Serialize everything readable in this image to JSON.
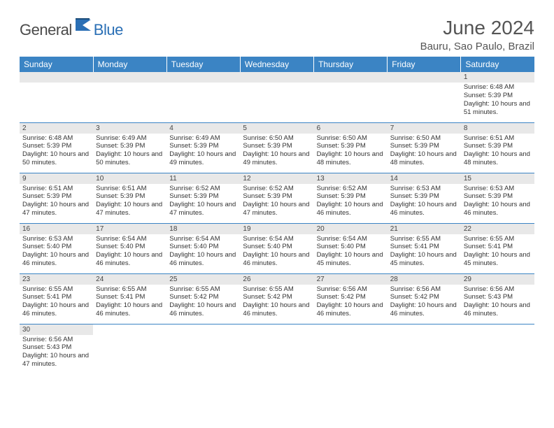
{
  "logo": {
    "textDark": "General",
    "textBlue": "Blue"
  },
  "title": "June 2024",
  "location": "Bauru, Sao Paulo, Brazil",
  "colors": {
    "headerBg": "#3b84c4",
    "headerText": "#ffffff",
    "dayNumBg": "#e8e8e8",
    "borderColor": "#3b84c4",
    "textColor": "#333333",
    "titleColor": "#555555",
    "logoDark": "#4a4a4a",
    "logoBlue": "#2a6fb5"
  },
  "weekdays": [
    "Sunday",
    "Monday",
    "Tuesday",
    "Wednesday",
    "Thursday",
    "Friday",
    "Saturday"
  ],
  "weeks": [
    [
      null,
      null,
      null,
      null,
      null,
      null,
      {
        "n": "1",
        "sr": "6:48 AM",
        "ss": "5:39 PM",
        "dl": "10 hours and 51 minutes."
      }
    ],
    [
      {
        "n": "2",
        "sr": "6:48 AM",
        "ss": "5:39 PM",
        "dl": "10 hours and 50 minutes."
      },
      {
        "n": "3",
        "sr": "6:49 AM",
        "ss": "5:39 PM",
        "dl": "10 hours and 50 minutes."
      },
      {
        "n": "4",
        "sr": "6:49 AM",
        "ss": "5:39 PM",
        "dl": "10 hours and 49 minutes."
      },
      {
        "n": "5",
        "sr": "6:50 AM",
        "ss": "5:39 PM",
        "dl": "10 hours and 49 minutes."
      },
      {
        "n": "6",
        "sr": "6:50 AM",
        "ss": "5:39 PM",
        "dl": "10 hours and 48 minutes."
      },
      {
        "n": "7",
        "sr": "6:50 AM",
        "ss": "5:39 PM",
        "dl": "10 hours and 48 minutes."
      },
      {
        "n": "8",
        "sr": "6:51 AM",
        "ss": "5:39 PM",
        "dl": "10 hours and 48 minutes."
      }
    ],
    [
      {
        "n": "9",
        "sr": "6:51 AM",
        "ss": "5:39 PM",
        "dl": "10 hours and 47 minutes."
      },
      {
        "n": "10",
        "sr": "6:51 AM",
        "ss": "5:39 PM",
        "dl": "10 hours and 47 minutes."
      },
      {
        "n": "11",
        "sr": "6:52 AM",
        "ss": "5:39 PM",
        "dl": "10 hours and 47 minutes."
      },
      {
        "n": "12",
        "sr": "6:52 AM",
        "ss": "5:39 PM",
        "dl": "10 hours and 47 minutes."
      },
      {
        "n": "13",
        "sr": "6:52 AM",
        "ss": "5:39 PM",
        "dl": "10 hours and 46 minutes."
      },
      {
        "n": "14",
        "sr": "6:53 AM",
        "ss": "5:39 PM",
        "dl": "10 hours and 46 minutes."
      },
      {
        "n": "15",
        "sr": "6:53 AM",
        "ss": "5:39 PM",
        "dl": "10 hours and 46 minutes."
      }
    ],
    [
      {
        "n": "16",
        "sr": "6:53 AM",
        "ss": "5:40 PM",
        "dl": "10 hours and 46 minutes."
      },
      {
        "n": "17",
        "sr": "6:54 AM",
        "ss": "5:40 PM",
        "dl": "10 hours and 46 minutes."
      },
      {
        "n": "18",
        "sr": "6:54 AM",
        "ss": "5:40 PM",
        "dl": "10 hours and 46 minutes."
      },
      {
        "n": "19",
        "sr": "6:54 AM",
        "ss": "5:40 PM",
        "dl": "10 hours and 46 minutes."
      },
      {
        "n": "20",
        "sr": "6:54 AM",
        "ss": "5:40 PM",
        "dl": "10 hours and 45 minutes."
      },
      {
        "n": "21",
        "sr": "6:55 AM",
        "ss": "5:41 PM",
        "dl": "10 hours and 45 minutes."
      },
      {
        "n": "22",
        "sr": "6:55 AM",
        "ss": "5:41 PM",
        "dl": "10 hours and 45 minutes."
      }
    ],
    [
      {
        "n": "23",
        "sr": "6:55 AM",
        "ss": "5:41 PM",
        "dl": "10 hours and 46 minutes."
      },
      {
        "n": "24",
        "sr": "6:55 AM",
        "ss": "5:41 PM",
        "dl": "10 hours and 46 minutes."
      },
      {
        "n": "25",
        "sr": "6:55 AM",
        "ss": "5:42 PM",
        "dl": "10 hours and 46 minutes."
      },
      {
        "n": "26",
        "sr": "6:55 AM",
        "ss": "5:42 PM",
        "dl": "10 hours and 46 minutes."
      },
      {
        "n": "27",
        "sr": "6:56 AM",
        "ss": "5:42 PM",
        "dl": "10 hours and 46 minutes."
      },
      {
        "n": "28",
        "sr": "6:56 AM",
        "ss": "5:42 PM",
        "dl": "10 hours and 46 minutes."
      },
      {
        "n": "29",
        "sr": "6:56 AM",
        "ss": "5:43 PM",
        "dl": "10 hours and 46 minutes."
      }
    ],
    [
      {
        "n": "30",
        "sr": "6:56 AM",
        "ss": "5:43 PM",
        "dl": "10 hours and 47 minutes."
      },
      null,
      null,
      null,
      null,
      null,
      null
    ]
  ],
  "labels": {
    "sunrise": "Sunrise:",
    "sunset": "Sunset:",
    "daylight": "Daylight:"
  }
}
